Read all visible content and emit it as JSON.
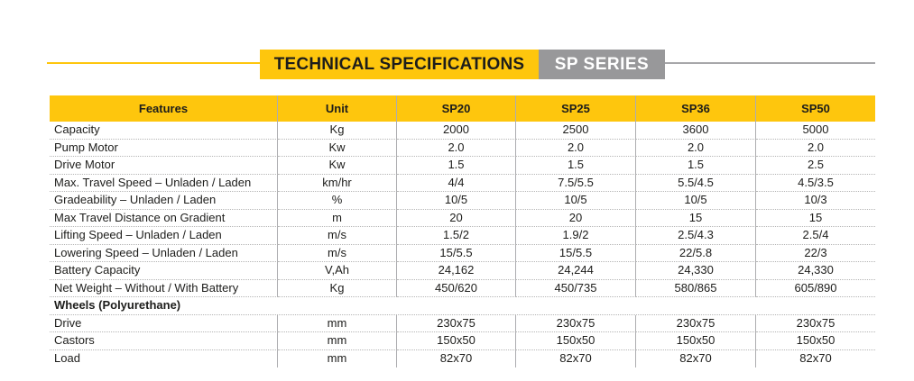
{
  "title_bar": {
    "primary": "TECHNICAL SPECIFICATIONS",
    "secondary": "SP SERIES"
  },
  "colors": {
    "accent_yellow": "#FEC60D",
    "badge_gray": "#98989A",
    "text_dark": "#1D1D1B",
    "column_line": "#ADADB0",
    "row_dotted_line": "#B5B5B5",
    "badge_text": "#FFFFFF"
  },
  "table": {
    "columns": [
      "Features",
      "Unit",
      "SP20",
      "SP25",
      "SP36",
      "SP50"
    ],
    "rows": [
      {
        "feature": "Capacity",
        "unit": "Kg",
        "values": [
          "2000",
          "2500",
          "3600",
          "5000"
        ]
      },
      {
        "feature": "Pump Motor",
        "unit": "Kw",
        "values": [
          "2.0",
          "2.0",
          "2.0",
          "2.0"
        ]
      },
      {
        "feature": "Drive Motor",
        "unit": "Kw",
        "values": [
          "1.5",
          "1.5",
          "1.5",
          "2.5"
        ]
      },
      {
        "feature": "Max. Travel Speed – Unladen / Laden",
        "unit": "km/hr",
        "values": [
          "4/4",
          "7.5/5.5",
          "5.5/4.5",
          "4.5/3.5"
        ]
      },
      {
        "feature": "Gradeability – Unladen / Laden",
        "unit": "%",
        "values": [
          "10/5",
          "10/5",
          "10/5",
          "10/3"
        ]
      },
      {
        "feature": "Max Travel Distance on Gradient",
        "unit": "m",
        "values": [
          "20",
          "20",
          "15",
          "15"
        ]
      },
      {
        "feature": "Lifting Speed – Unladen / Laden",
        "unit": "m/s",
        "values": [
          "1.5/2",
          "1.9/2",
          "2.5/4.3",
          "2.5/4"
        ]
      },
      {
        "feature": "Lowering Speed – Unladen / Laden",
        "unit": "m/s",
        "values": [
          "15/5.5",
          "15/5.5",
          "22/5.8",
          "22/3"
        ]
      },
      {
        "feature": "Battery Capacity",
        "unit": "V,Ah",
        "values": [
          "24,162",
          "24,244",
          "24,330",
          "24,330"
        ]
      },
      {
        "feature": "Net Weight – Without / With Battery",
        "unit": "Kg",
        "values": [
          "450/620",
          "450/735",
          "580/865",
          "605/890"
        ]
      },
      {
        "feature": "Wheels (Polyurethane)",
        "section": true
      },
      {
        "feature": "Drive",
        "unit": "mm",
        "values": [
          "230x75",
          "230x75",
          "230x75",
          "230x75"
        ]
      },
      {
        "feature": "Castors",
        "unit": "mm",
        "values": [
          "150x50",
          "150x50",
          "150x50",
          "150x50"
        ]
      },
      {
        "feature": "Load",
        "unit": "mm",
        "values": [
          "82x70",
          "82x70",
          "82x70",
          "82x70"
        ]
      }
    ]
  }
}
